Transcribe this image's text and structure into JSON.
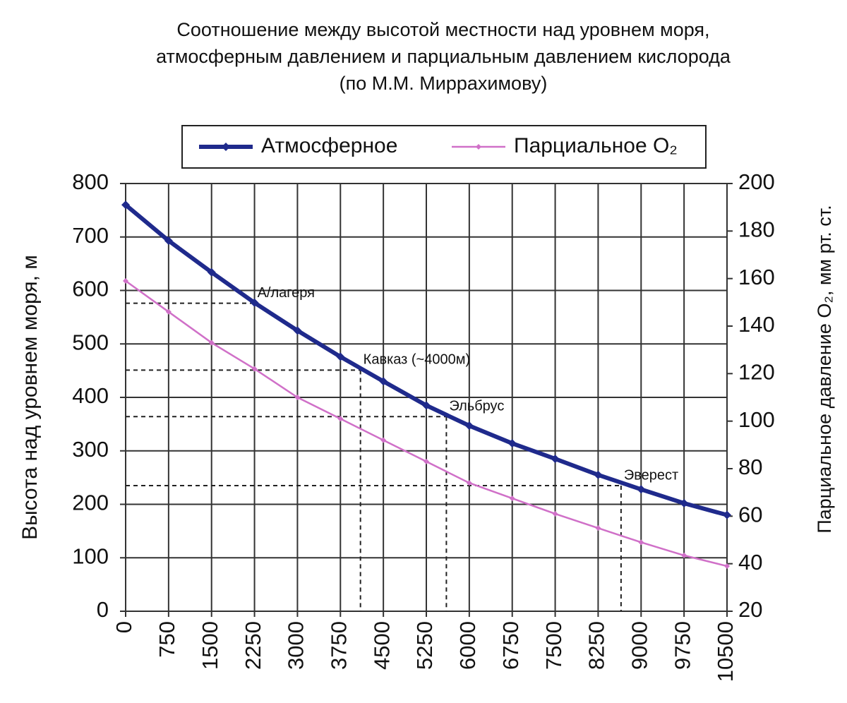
{
  "chart_data": {
    "type": "line",
    "title": [
      "Соотношение между высотой местности над уровнем моря,",
      "атмосферным давлением и парциальным давлением кислорода",
      "(по М.М. Миррахимову)"
    ],
    "ylabel": "Высота над уровнем моря, м",
    "y2label": "Парциальное давление O₂, мм рт. ст.",
    "x": [
      0,
      750,
      1500,
      2250,
      3000,
      3750,
      4500,
      5250,
      6000,
      6750,
      7500,
      8250,
      9000,
      9750,
      10500
    ],
    "xlim": [
      0,
      10500
    ],
    "xticks": [
      0,
      750,
      1500,
      2250,
      3000,
      3750,
      4500,
      5250,
      6000,
      6750,
      7500,
      8250,
      9000,
      9750,
      10500
    ],
    "ylim": [
      0,
      800
    ],
    "yticks": [
      0,
      100,
      200,
      300,
      400,
      500,
      600,
      700,
      800
    ],
    "y2lim": [
      20,
      200
    ],
    "y2ticks": [
      20,
      40,
      60,
      80,
      100,
      120,
      140,
      160,
      180,
      200
    ],
    "grid": true,
    "legend": "top",
    "series": [
      {
        "name": "Атмосферное",
        "color": "#1f2a8c",
        "values": [
          760,
          693,
          634,
          577,
          525,
          476,
          430,
          385,
          347,
          314,
          285,
          255,
          228,
          202,
          180
        ]
      },
      {
        "name": "Парциальное O₂",
        "color": "#d070c8",
        "axis": "y2",
        "values": [
          159,
          146,
          133,
          122,
          110,
          101,
          92,
          83,
          74,
          67.5,
          61,
          55,
          49,
          43.5,
          39
        ]
      }
    ],
    "annotations": [
      {
        "text": "А/лагеря",
        "x": 2250,
        "y": 576,
        "vertical": false
      },
      {
        "text": "Кавказ (~4000м)",
        "x": 4100,
        "y": 451,
        "vertical": true
      },
      {
        "text": "Эльбрус",
        "x": 5600,
        "y": 364,
        "vertical": true
      },
      {
        "text": "Эверест",
        "x": 8650,
        "y": 235,
        "vertical": true
      }
    ]
  }
}
